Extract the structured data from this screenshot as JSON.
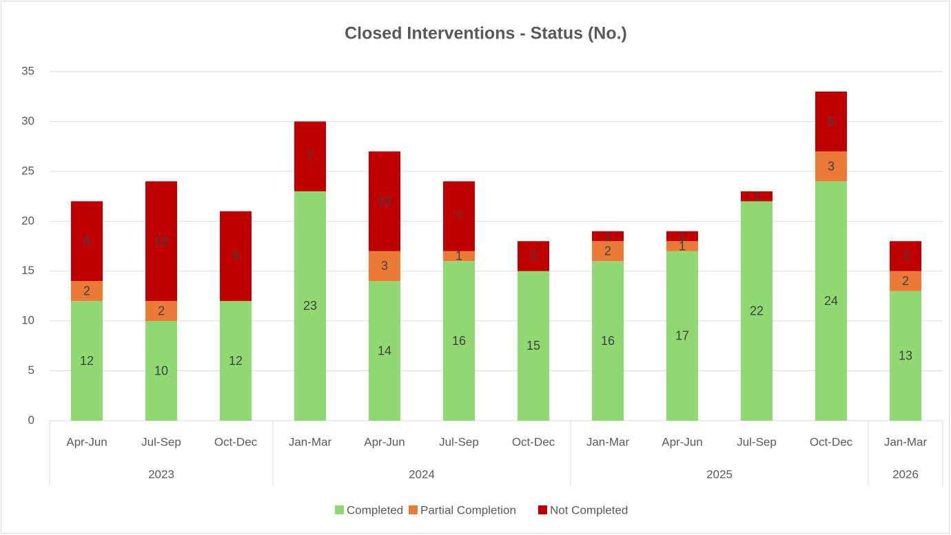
{
  "chart_data": {
    "type": "stacked_bar",
    "title": "Closed Interventions - Status (No.)",
    "groups": [
      {
        "label": "2023",
        "categories": [
          "Apr-Jun",
          "Jul-Sep",
          "Oct-Dec"
        ]
      },
      {
        "label": "2024",
        "categories": [
          "Jan-Mar",
          "Apr-Jun",
          "Jul-Sep",
          "Oct-Dec"
        ]
      },
      {
        "label": "2025",
        "categories": [
          "Jan-Mar",
          "Apr-Jun",
          "Jul-Sep",
          "Oct-Dec"
        ]
      },
      {
        "label": "2026",
        "categories": [
          "Jan-Mar"
        ]
      }
    ],
    "series": [
      {
        "name": "Completed",
        "color": "#8fd872",
        "values": [
          12,
          10,
          12,
          23,
          14,
          16,
          15,
          16,
          17,
          22,
          24,
          13
        ]
      },
      {
        "name": "Partial Completion",
        "color": "#eb7a37",
        "values": [
          2,
          2,
          null,
          null,
          3,
          1,
          null,
          2,
          1,
          null,
          3,
          2
        ]
      },
      {
        "name": "Not Completed",
        "color": "#c00000",
        "values": [
          8,
          12,
          9,
          7,
          10,
          7,
          3,
          1,
          1,
          1,
          6,
          3
        ]
      }
    ],
    "ylim": [
      0,
      35
    ],
    "yticks": [
      0,
      5,
      10,
      15,
      20,
      25,
      30,
      35
    ],
    "grid": true,
    "legend": "bottom"
  }
}
